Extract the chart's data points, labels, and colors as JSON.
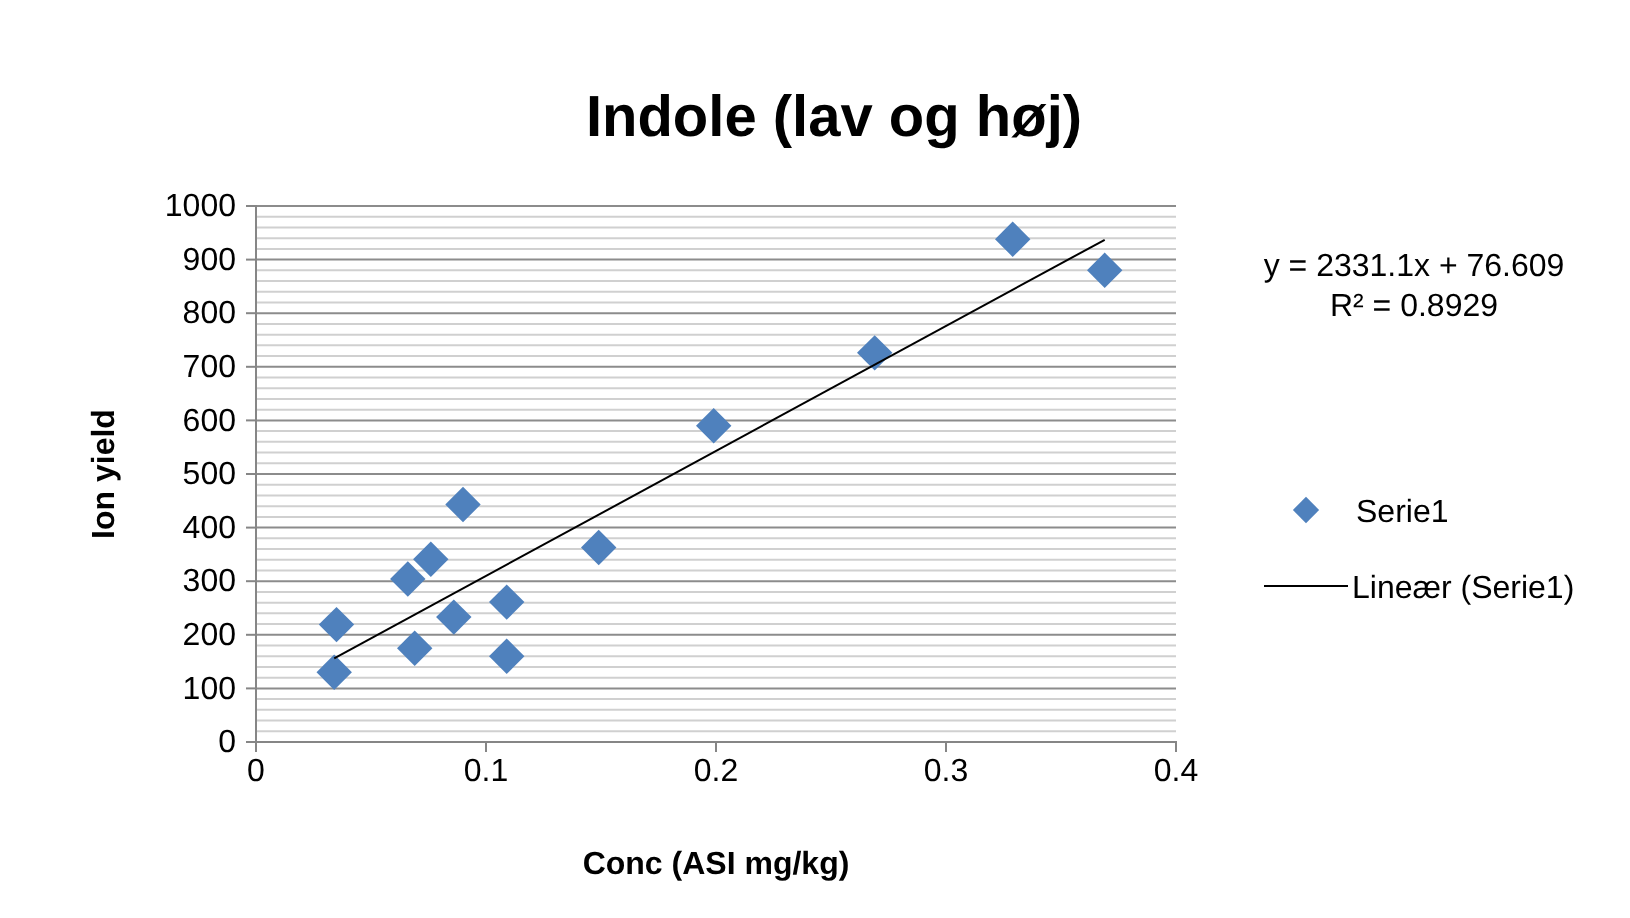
{
  "chart_data": {
    "type": "scatter",
    "title": "Indole (lav og høj)",
    "xlabel": "Conc (ASI mg/kg)",
    "ylabel": "Ion yield",
    "xlim": [
      0,
      0.4
    ],
    "xticks": [
      0,
      0.1,
      0.2,
      0.3,
      0.4
    ],
    "ylim": [
      0,
      1000
    ],
    "yticks": [
      0,
      {
        "value": 20,
        "label": null
      },
      {
        "value": 40,
        "label": null
      },
      {
        "value": 60,
        "label": null
      },
      {
        "value": 80,
        "label": null
      },
      100,
      {
        "value": 120,
        "label": null
      },
      {
        "value": 140,
        "label": null
      },
      {
        "value": 160,
        "label": null
      },
      {
        "value": 180,
        "label": null
      },
      200,
      {
        "value": 220,
        "label": null
      },
      {
        "value": 240,
        "label": null
      },
      {
        "value": 260,
        "label": null
      },
      {
        "value": 280,
        "label": null
      },
      300,
      {
        "value": 320,
        "label": null
      },
      {
        "value": 340,
        "label": null
      },
      {
        "value": 360,
        "label": null
      },
      {
        "value": 380,
        "label": null
      },
      400,
      {
        "value": 420,
        "label": null
      },
      {
        "value": 440,
        "label": null
      },
      {
        "value": 460,
        "label": null
      },
      {
        "value": 480,
        "label": null
      },
      500,
      {
        "value": 520,
        "label": null
      },
      {
        "value": 540,
        "label": null
      },
      {
        "value": 560,
        "label": null
      },
      {
        "value": 580,
        "label": null
      },
      600,
      {
        "value": 620,
        "label": null
      },
      {
        "value": 640,
        "label": null
      },
      {
        "value": 660,
        "label": null
      },
      {
        "value": 680,
        "label": null
      },
      700,
      {
        "value": 720,
        "label": null
      },
      {
        "value": 740,
        "label": null
      },
      {
        "value": 760,
        "label": null
      },
      {
        "value": 780,
        "label": null
      },
      800,
      {
        "value": 820,
        "label": null
      },
      {
        "value": 840,
        "label": null
      },
      {
        "value": 860,
        "label": null
      },
      {
        "value": 880,
        "label": null
      },
      900,
      {
        "value": 920,
        "label": null
      },
      {
        "value": 940,
        "label": null
      },
      {
        "value": 960,
        "label": null
      },
      {
        "value": 980,
        "label": null
      },
      1000
    ],
    "grid": "y",
    "legend": "right",
    "series": [
      {
        "name": "Serie1",
        "marker": "diamond",
        "color": "#4f81bd",
        "x": [
          0.035,
          0.034,
          0.066,
          0.076,
          0.09,
          0.069,
          0.086,
          0.109,
          0.109,
          0.149,
          0.199,
          0.269,
          0.329,
          0.369
        ],
        "values": [
          219,
          130,
          304,
          341,
          443,
          175,
          233,
          261,
          160,
          363,
          590,
          726,
          938,
          880
        ]
      },
      {
        "name": "Lineær (Serie1)",
        "type": "line",
        "marker": "none",
        "color": "#000000",
        "x": [
          0.034,
          0.369
        ],
        "values": [
          156,
          937
        ]
      }
    ],
    "annotations": [
      "y = 2331.1x + 76.609",
      "R² = 0.8929"
    ]
  }
}
